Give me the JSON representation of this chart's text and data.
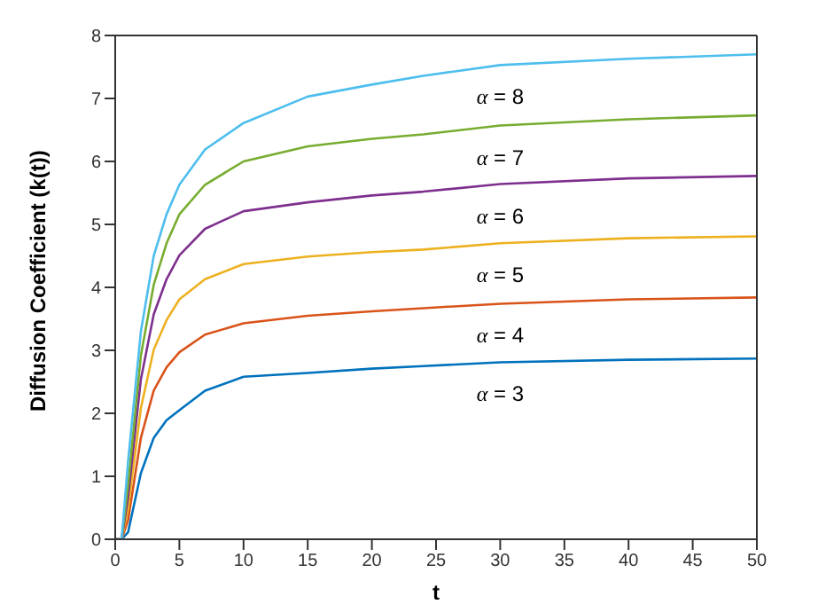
{
  "chart_data": {
    "type": "line",
    "xlabel": "t",
    "ylabel": "Diffusion Coefficient (k(t))",
    "x": [
      0,
      0.5,
      1,
      2,
      3,
      4,
      5,
      7,
      10,
      15,
      20,
      24,
      30,
      40,
      50
    ],
    "series": [
      {
        "name": "α = 3",
        "color": "#0072bd",
        "values": [
          0,
          0,
          0.11,
          1.05,
          1.61,
          1.89,
          2.05,
          2.36,
          2.58,
          2.64,
          2.71,
          2.75,
          2.81,
          2.85,
          2.87
        ]
      },
      {
        "name": "α = 4",
        "color": "#d95319",
        "values": [
          0,
          0,
          0.3,
          1.61,
          2.36,
          2.73,
          2.97,
          3.25,
          3.43,
          3.55,
          3.62,
          3.67,
          3.74,
          3.81,
          3.84
        ]
      },
      {
        "name": "α = 5",
        "color": "#edb120",
        "values": [
          0,
          0,
          0.49,
          2.08,
          3.01,
          3.48,
          3.81,
          4.13,
          4.37,
          4.49,
          4.56,
          4.6,
          4.7,
          4.78,
          4.81
        ]
      },
      {
        "name": "α = 6",
        "color": "#7e2f8e",
        "values": [
          0,
          0,
          0.67,
          2.54,
          3.57,
          4.13,
          4.51,
          4.93,
          5.21,
          5.35,
          5.46,
          5.52,
          5.64,
          5.73,
          5.77
        ]
      },
      {
        "name": "α = 7",
        "color": "#77ac30",
        "values": [
          0,
          0,
          0.86,
          2.92,
          4.04,
          4.7,
          5.16,
          5.63,
          6,
          6.24,
          6.36,
          6.43,
          6.57,
          6.67,
          6.73
        ]
      },
      {
        "name": "α = 8",
        "color": "#4dbeee",
        "values": [
          0,
          0,
          1.23,
          3.3,
          4.5,
          5.16,
          5.63,
          6.19,
          6.61,
          7.03,
          7.22,
          7.36,
          7.53,
          7.63,
          7.7
        ]
      }
    ],
    "xlim": [
      0,
      50
    ],
    "xticks": [
      0,
      5,
      10,
      15,
      20,
      25,
      30,
      35,
      40,
      45,
      50
    ],
    "ylim": [
      0,
      8
    ],
    "yticks": [
      0,
      1,
      2,
      3,
      4,
      5,
      6,
      7,
      8
    ],
    "grid": false,
    "legend": false,
    "marker": "none",
    "line_style": "solid"
  }
}
